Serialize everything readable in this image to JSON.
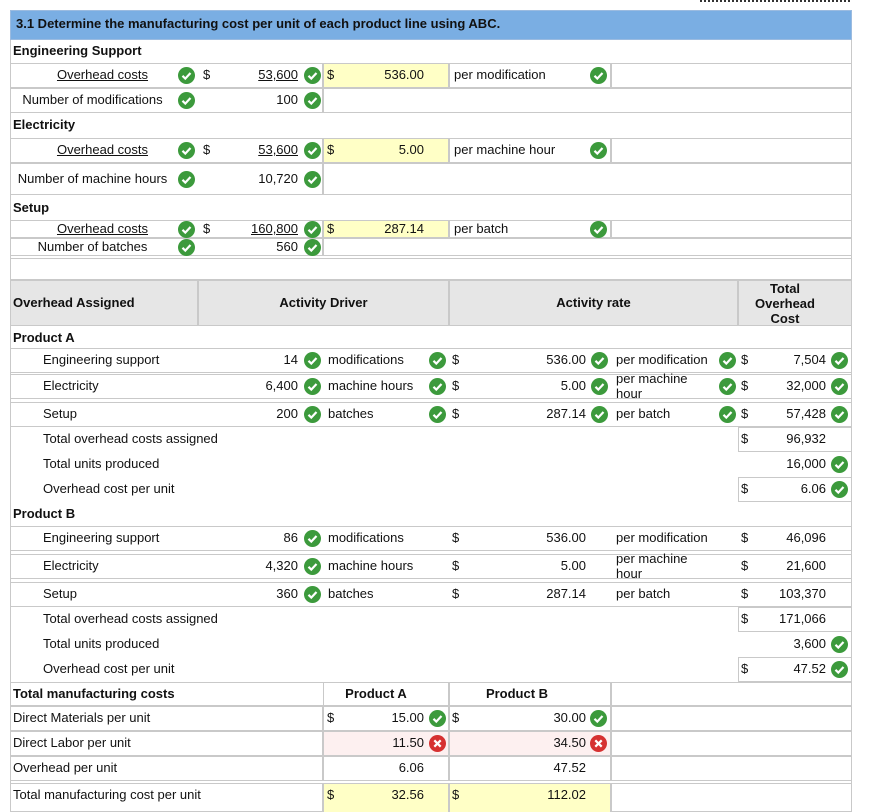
{
  "title": "3.1 Determine the manufacturing cost per unit of each product line using ABC.",
  "currency": "$",
  "rate_sections": [
    {
      "heading": "Engineering Support",
      "cost_label": "Overhead costs",
      "cost": "53,600",
      "rate": "536.00",
      "rate_unit": "per modification",
      "driver_label": "Number of modifications",
      "driver": "100"
    },
    {
      "heading": "Electricity",
      "cost_label": "Overhead costs",
      "cost": "53,600",
      "rate": "5.00",
      "rate_unit": "per machine hour",
      "driver_label": "Number of machine hours",
      "driver": "10,720"
    },
    {
      "heading": "Setup",
      "cost_label": "Overhead costs",
      "cost": "160,800",
      "rate": "287.14",
      "rate_unit": "per batch",
      "driver_label": "Number of batches",
      "driver": "560"
    }
  ],
  "assigned_header": {
    "label": "Overhead Assigned",
    "driver": "Activity Driver",
    "rate": "Activity rate",
    "total": "Total Overhead Cost"
  },
  "products": [
    {
      "name": "Product A",
      "rows": [
        {
          "label": "Engineering support",
          "qty": "14",
          "driver": "modifications",
          "rate": "536.00",
          "unit": "per modification",
          "total": "7,504"
        },
        {
          "label": "Electricity",
          "qty": "6,400",
          "driver": "machine hours",
          "rate": "5.00",
          "unit": "per machine hour",
          "total": "32,000"
        },
        {
          "label": "Setup",
          "qty": "200",
          "driver": "batches",
          "rate": "287.14",
          "unit": "per batch",
          "total": "57,428"
        }
      ],
      "total_label": "Total overhead costs assigned",
      "total": "96,932",
      "units_label": "Total units produced",
      "units": "16,000",
      "per_unit_label": "Overhead cost per unit",
      "per_unit": "6.06"
    },
    {
      "name": "Product B",
      "rows": [
        {
          "label": "Engineering support",
          "qty": "86",
          "driver": "modifications",
          "rate": "536.00",
          "unit": "per modification",
          "total": "46,096"
        },
        {
          "label": "Electricity",
          "qty": "4,320",
          "driver": "machine hours",
          "rate": "5.00",
          "unit": "per machine hour",
          "total": "21,600"
        },
        {
          "label": "Setup",
          "qty": "360",
          "driver": "batches",
          "rate": "287.14",
          "unit": "per batch",
          "total": "103,370"
        }
      ],
      "total_label": "Total overhead costs assigned",
      "total": "171,066",
      "units_label": "Total units produced",
      "units": "3,600",
      "per_unit_label": "Overhead cost per unit",
      "per_unit": "47.52"
    }
  ],
  "manufacturing": {
    "header": "Total manufacturing costs",
    "columns": [
      "Product A",
      "Product B"
    ],
    "rows": [
      {
        "label": "Direct Materials per unit",
        "values": [
          "15.00",
          "30.00"
        ]
      },
      {
        "label": "Direct Labor per unit",
        "values": [
          "11.50",
          "34.50"
        ]
      },
      {
        "label": "Overhead per unit",
        "values": [
          "6.06",
          "47.52"
        ]
      },
      {
        "label": "Total manufacturing cost per unit",
        "values": [
          "32.56",
          "112.02"
        ]
      }
    ]
  }
}
